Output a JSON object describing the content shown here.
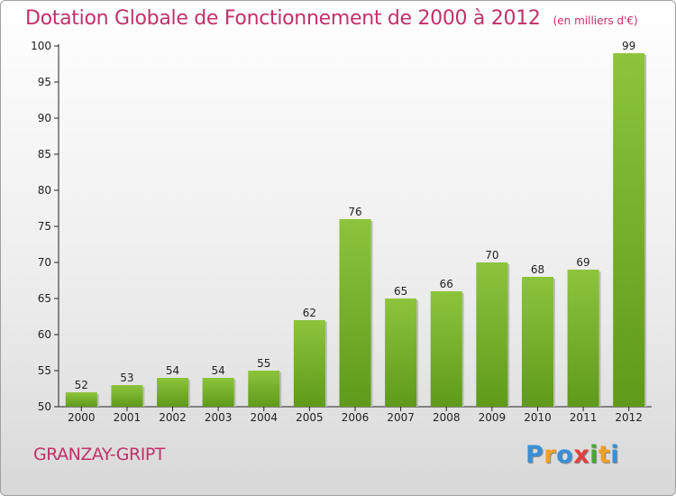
{
  "title": "Dotation Globale de Fonctionnement de 2000 à 2012",
  "subtitle": "(en milliers d'€)",
  "commune": "GRANZAY-GRIPT",
  "logo": {
    "letters": [
      "P",
      "r",
      "o",
      "x",
      "i",
      "t",
      "i"
    ],
    "colors": [
      "#3a8fd6",
      "#f0a020",
      "#3a8fd6",
      "#e04040",
      "#4aa63a",
      "#f0a020",
      "#3a8fd6"
    ]
  },
  "chart_data": {
    "type": "bar",
    "title": "Dotation Globale de Fonctionnement de 2000 à 2012",
    "subtitle": "(en milliers d'€)",
    "xlabel": "",
    "ylabel": "",
    "categories": [
      "2000",
      "2001",
      "2002",
      "2003",
      "2004",
      "2005",
      "2006",
      "2007",
      "2008",
      "2009",
      "2010",
      "2011",
      "2012"
    ],
    "values": [
      52,
      53,
      54,
      54,
      55,
      62,
      76,
      65,
      66,
      70,
      68,
      69,
      99
    ],
    "ylim": [
      50,
      100
    ],
    "yticks": [
      50,
      55,
      60,
      65,
      70,
      75,
      80,
      85,
      90,
      95,
      100
    ],
    "grid": false,
    "bar_color": "#8cc43c",
    "bar_color_dark": "#5f9a1a",
    "text_color": "#c2306a"
  }
}
